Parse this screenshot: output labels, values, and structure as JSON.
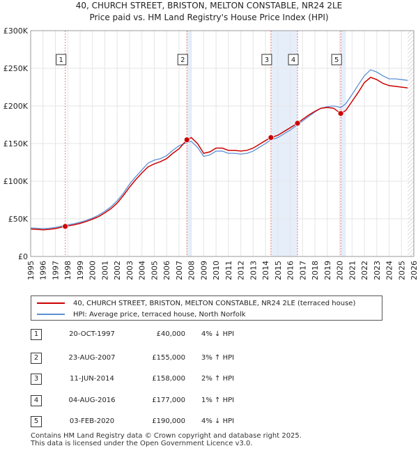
{
  "title": {
    "line1": "40, CHURCH STREET, BRISTON, MELTON CONSTABLE, NR24 2LE",
    "line2": "Price paid vs. HM Land Registry's House Price Index (HPI)"
  },
  "colors": {
    "price_line": "#cc0000",
    "hpi_line": "#5b8fd4",
    "shade": "#e6eefa",
    "grid": "#e5e5e5"
  },
  "chart_data": {
    "type": "line",
    "title": "Price paid vs. HM Land Registry's House Price Index (HPI)",
    "xlim": [
      1995,
      2026
    ],
    "ylim": [
      0,
      300000
    ],
    "y_ticks": [
      {
        "value": 0,
        "label": "£0"
      },
      {
        "value": 50000,
        "label": "£50K"
      },
      {
        "value": 100000,
        "label": "£100K"
      },
      {
        "value": 150000,
        "label": "£150K"
      },
      {
        "value": 200000,
        "label": "£200K"
      },
      {
        "value": 250000,
        "label": "£250K"
      },
      {
        "value": 300000,
        "label": "£300K"
      }
    ],
    "x_ticks": [
      "1995",
      "1996",
      "1997",
      "1998",
      "1999",
      "2000",
      "2001",
      "2002",
      "2003",
      "2004",
      "2005",
      "2006",
      "2007",
      "2008",
      "2009",
      "2010",
      "2011",
      "2012",
      "2013",
      "2014",
      "2015",
      "2016",
      "2017",
      "2018",
      "2019",
      "2020",
      "2021",
      "2022",
      "2023",
      "2024",
      "2025",
      "2026"
    ],
    "series": [
      {
        "name": "HPI: Average price, terraced house, North Norfolk",
        "points": [
          [
            1995.0,
            38000
          ],
          [
            1995.5,
            37500
          ],
          [
            1996.0,
            37000
          ],
          [
            1996.5,
            37500
          ],
          [
            1997.0,
            38500
          ],
          [
            1997.8,
            41500
          ],
          [
            1998.5,
            43500
          ],
          [
            1999.0,
            45500
          ],
          [
            1999.5,
            48000
          ],
          [
            2000.0,
            51000
          ],
          [
            2000.5,
            55000
          ],
          [
            2001.0,
            60000
          ],
          [
            2001.5,
            66000
          ],
          [
            2002.0,
            74000
          ],
          [
            2002.5,
            84000
          ],
          [
            2003.0,
            96000
          ],
          [
            2003.5,
            106000
          ],
          [
            2004.0,
            115000
          ],
          [
            2004.5,
            124000
          ],
          [
            2005.0,
            128000
          ],
          [
            2005.5,
            130000
          ],
          [
            2006.0,
            134000
          ],
          [
            2006.5,
            141000
          ],
          [
            2007.0,
            147000
          ],
          [
            2007.6,
            151000
          ],
          [
            2008.0,
            153000
          ],
          [
            2008.5,
            145000
          ],
          [
            2009.0,
            133000
          ],
          [
            2009.5,
            135000
          ],
          [
            2010.0,
            140000
          ],
          [
            2010.5,
            140000
          ],
          [
            2011.0,
            137000
          ],
          [
            2011.5,
            137000
          ],
          [
            2012.0,
            136000
          ],
          [
            2012.5,
            137000
          ],
          [
            2013.0,
            140000
          ],
          [
            2013.5,
            145000
          ],
          [
            2014.0,
            150000
          ],
          [
            2014.45,
            155000
          ],
          [
            2015.0,
            158000
          ],
          [
            2015.5,
            163000
          ],
          [
            2016.0,
            168000
          ],
          [
            2016.6,
            175000
          ],
          [
            2017.0,
            180000
          ],
          [
            2017.5,
            186000
          ],
          [
            2018.0,
            192000
          ],
          [
            2018.5,
            197000
          ],
          [
            2019.0,
            199000
          ],
          [
            2019.5,
            200000
          ],
          [
            2020.1,
            198000
          ],
          [
            2020.5,
            203000
          ],
          [
            2021.0,
            215000
          ],
          [
            2021.5,
            228000
          ],
          [
            2022.0,
            240000
          ],
          [
            2022.5,
            248000
          ],
          [
            2023.0,
            245000
          ],
          [
            2023.5,
            240000
          ],
          [
            2024.0,
            236000
          ],
          [
            2024.5,
            236000
          ],
          [
            2025.0,
            235000
          ],
          [
            2025.5,
            234000
          ]
        ]
      },
      {
        "name": "40, CHURCH STREET, BRISTON, MELTON CONSTABLE, NR24 2LE (terraced house)",
        "points": [
          [
            1995.0,
            36500
          ],
          [
            1995.5,
            36000
          ],
          [
            1996.0,
            35500
          ],
          [
            1996.5,
            36000
          ],
          [
            1997.0,
            37000
          ],
          [
            1997.8,
            40000
          ],
          [
            1998.5,
            42000
          ],
          [
            1999.0,
            44000
          ],
          [
            1999.5,
            46500
          ],
          [
            2000.0,
            49500
          ],
          [
            2000.5,
            53000
          ],
          [
            2001.0,
            58000
          ],
          [
            2001.5,
            63500
          ],
          [
            2002.0,
            71000
          ],
          [
            2002.5,
            81000
          ],
          [
            2003.0,
            92000
          ],
          [
            2003.5,
            102000
          ],
          [
            2004.0,
            111000
          ],
          [
            2004.5,
            119000
          ],
          [
            2005.0,
            123000
          ],
          [
            2005.5,
            126000
          ],
          [
            2006.0,
            130000
          ],
          [
            2006.5,
            137000
          ],
          [
            2007.0,
            143000
          ],
          [
            2007.64,
            155000
          ],
          [
            2008.0,
            158000
          ],
          [
            2008.5,
            150000
          ],
          [
            2009.0,
            137000
          ],
          [
            2009.5,
            139000
          ],
          [
            2010.0,
            144000
          ],
          [
            2010.5,
            144000
          ],
          [
            2011.0,
            141000
          ],
          [
            2011.5,
            141000
          ],
          [
            2012.0,
            140000
          ],
          [
            2012.5,
            141000
          ],
          [
            2013.0,
            144000
          ],
          [
            2013.5,
            149000
          ],
          [
            2014.0,
            154000
          ],
          [
            2014.44,
            158000
          ],
          [
            2015.0,
            161000
          ],
          [
            2015.5,
            166000
          ],
          [
            2016.0,
            171000
          ],
          [
            2016.59,
            177000
          ],
          [
            2017.0,
            182000
          ],
          [
            2017.5,
            188000
          ],
          [
            2018.0,
            193000
          ],
          [
            2018.5,
            197000
          ],
          [
            2019.0,
            198000
          ],
          [
            2019.5,
            197000
          ],
          [
            2020.09,
            190000
          ],
          [
            2020.5,
            194000
          ],
          [
            2021.0,
            206000
          ],
          [
            2021.5,
            218000
          ],
          [
            2022.0,
            231000
          ],
          [
            2022.5,
            238000
          ],
          [
            2023.0,
            235000
          ],
          [
            2023.5,
            230000
          ],
          [
            2024.0,
            227000
          ],
          [
            2024.5,
            226000
          ],
          [
            2025.0,
            225000
          ],
          [
            2025.5,
            224000
          ]
        ]
      }
    ],
    "sales": [
      {
        "num": "1",
        "x": 1997.8,
        "y": 40000
      },
      {
        "num": "2",
        "x": 2007.64,
        "y": 155000
      },
      {
        "num": "3",
        "x": 2014.44,
        "y": 158000
      },
      {
        "num": "4",
        "x": 2016.59,
        "y": 177000
      },
      {
        "num": "5",
        "x": 2020.09,
        "y": 190000
      }
    ],
    "shaded_ranges": [
      [
        2007.64,
        2008.0
      ],
      [
        2014.44,
        2016.59
      ],
      [
        2020.09,
        2020.5
      ]
    ],
    "data_end_x": 2025.5
  },
  "legend": {
    "price_label": "40, CHURCH STREET, BRISTON, MELTON CONSTABLE, NR24 2LE (terraced house)",
    "hpi_label": "HPI: Average price, terraced house, North Norfolk"
  },
  "sales_table": [
    {
      "num": "1",
      "date": "20-OCT-1997",
      "price": "£40,000",
      "hpi": "4% ↓ HPI"
    },
    {
      "num": "2",
      "date": "23-AUG-2007",
      "price": "£155,000",
      "hpi": "3% ↑ HPI"
    },
    {
      "num": "3",
      "date": "11-JUN-2014",
      "price": "£158,000",
      "hpi": "2% ↑ HPI"
    },
    {
      "num": "4",
      "date": "04-AUG-2016",
      "price": "£177,000",
      "hpi": "1% ↑ HPI"
    },
    {
      "num": "5",
      "date": "03-FEB-2020",
      "price": "£190,000",
      "hpi": "4% ↓ HPI"
    }
  ],
  "footer": {
    "line1": "Contains HM Land Registry data © Crown copyright and database right 2025.",
    "line2": "This data is licensed under the Open Government Licence v3.0."
  }
}
